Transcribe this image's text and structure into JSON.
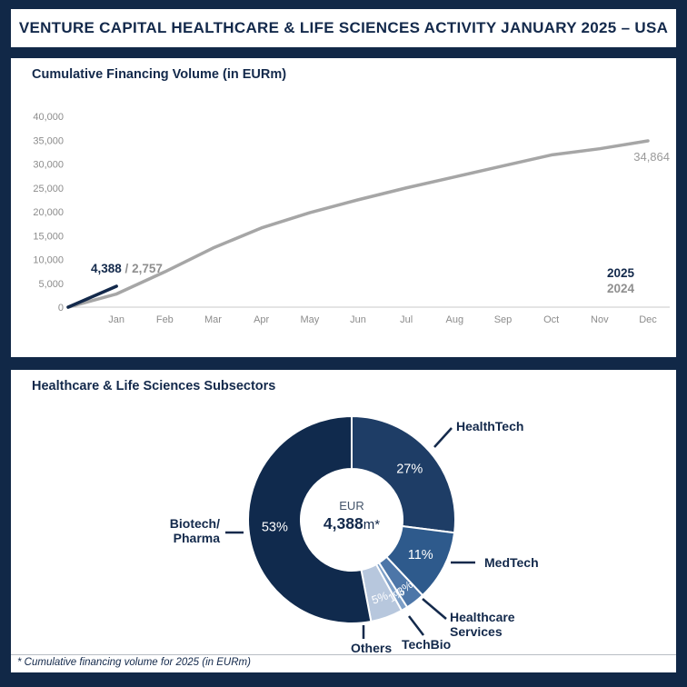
{
  "page_title": "VENTURE CAPITAL HEALTHCARE & LIFE SCIENCES ACTIVITY JANUARY 2025 – USA",
  "financing_panel": {
    "title": "Cumulative Financing Volume (in EURm)",
    "annotation": {
      "value_2025": "4,388",
      "separator": " / ",
      "value_2024": "2,757"
    },
    "end_label": "34,864",
    "legend": [
      {
        "label": "2025",
        "color": "#13294b"
      },
      {
        "label": "2024",
        "color": "#a6a6a6"
      }
    ]
  },
  "subsectors_panel": {
    "title": "Healthcare & Life Sciences Subsectors",
    "center": {
      "currency": "EUR",
      "value": "4,388",
      "suffix": "m*"
    }
  },
  "footnote": "* Cumulative financing volume for 2025 (in EURm)",
  "colors": {
    "background_navy": "#112847",
    "text_navy": "#13294b",
    "axis_gray": "#c9c9c9",
    "tick_gray": "#8c8c8c"
  },
  "chart_data": [
    {
      "type": "line",
      "title": "Cumulative Financing Volume (in EURm)",
      "categories": [
        "Jan",
        "Feb",
        "Mar",
        "Apr",
        "May",
        "Jun",
        "Jul",
        "Aug",
        "Sep",
        "Oct",
        "Nov",
        "Dec"
      ],
      "series": [
        {
          "name": "2025",
          "color": "#13294b",
          "values": [
            4388,
            null,
            null,
            null,
            null,
            null,
            null,
            null,
            null,
            null,
            null,
            null
          ]
        },
        {
          "name": "2024",
          "color": "#a6a6a6",
          "values_estimated_after_jan": true,
          "values": [
            2757,
            7400,
            12400,
            16600,
            19800,
            22500,
            25000,
            27300,
            29600,
            31900,
            33200,
            34864
          ]
        }
      ],
      "starts_at_zero": true,
      "ylim": [
        0,
        40000
      ],
      "ytick_step": 5000,
      "ytick_labels": [
        "0",
        "5,000",
        "10,000",
        "15,000",
        "20,000",
        "25,000",
        "30,000",
        "35,000",
        "40,000"
      ],
      "grid": false,
      "legend_position": "right-bottom"
    },
    {
      "type": "donut",
      "title": "Healthcare & Life Sciences Subsectors",
      "center_label": {
        "line1": "EUR",
        "value": "4,388",
        "suffix": "m*"
      },
      "start_angle_deg": 0,
      "direction": "clockwise",
      "slices": [
        {
          "label": "HealthTech",
          "pct": 27,
          "color": "#1e3d66"
        },
        {
          "label": "MedTech",
          "pct": 11,
          "color": "#2e5a8c"
        },
        {
          "label": "Healthcare Services",
          "label_lines": [
            "Healthcare",
            "Services"
          ],
          "pct": 3,
          "color": "#4d76a8"
        },
        {
          "label": "TechBio",
          "pct": 1,
          "color": "#7d9fc7"
        },
        {
          "label": "Others",
          "pct": 5,
          "color": "#b7c7dd"
        },
        {
          "label": "Biotech/Pharma",
          "label_lines": [
            "Biotech/",
            "Pharma"
          ],
          "pct": 53,
          "color": "#102a4d"
        }
      ]
    }
  ]
}
